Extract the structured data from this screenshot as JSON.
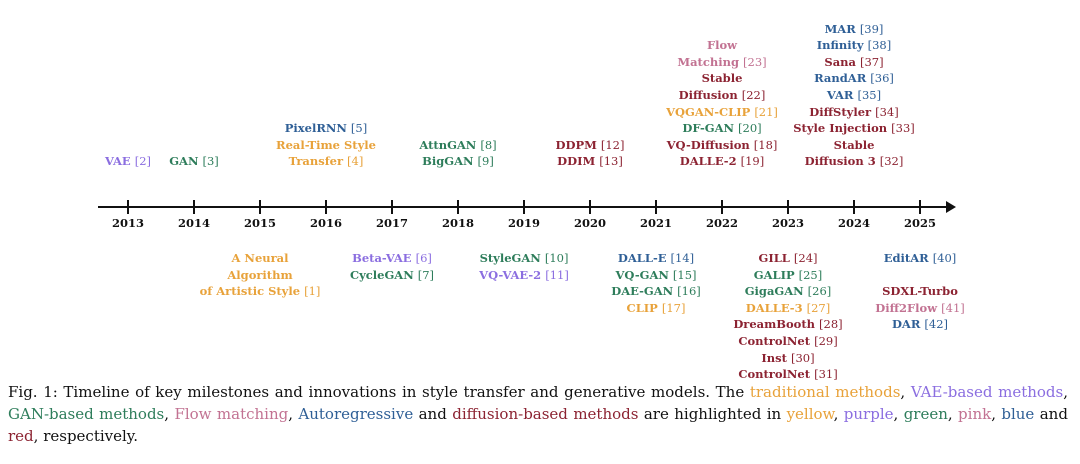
{
  "colors": {
    "yellow": "#e8a23a",
    "purple": "#8b6ee0",
    "green": "#2e7d5b",
    "pink": "#c27292",
    "blue": "#2f5f96",
    "red": "#8c2332"
  },
  "years": [
    "2013",
    "2014",
    "2015",
    "2016",
    "2017",
    "2018",
    "2019",
    "2020",
    "2021",
    "2022",
    "2023",
    "2024",
    "2025"
  ],
  "above": {
    "y2013": [
      {
        "name": "VAE",
        "ref": "[2]",
        "color": "purple"
      }
    ],
    "y2014": [
      {
        "name": "GAN",
        "ref": "[3]",
        "color": "green"
      }
    ],
    "y2016": [
      {
        "name": "PixelRNN",
        "ref": "[5]",
        "color": "blue"
      },
      {
        "name": "Real-Time Style",
        "ref": "",
        "color": "yellow"
      },
      {
        "name": "Transfer",
        "ref": "[4]",
        "color": "yellow"
      }
    ],
    "y2018": [
      {
        "name": "AttnGAN",
        "ref": "[8]",
        "color": "green"
      },
      {
        "name": "BigGAN",
        "ref": "[9]",
        "color": "green"
      }
    ],
    "y2020": [
      {
        "name": "DDPM",
        "ref": "[12]",
        "color": "red"
      },
      {
        "name": "DDIM",
        "ref": "[13]",
        "color": "red"
      }
    ],
    "y2022": [
      {
        "name": "Flow",
        "ref": "",
        "color": "pink"
      },
      {
        "name": "Matching",
        "ref": "[23]",
        "color": "pink"
      },
      {
        "name": "Stable",
        "ref": "",
        "color": "red"
      },
      {
        "name": "Diffusion",
        "ref": "[22]",
        "color": "red"
      },
      {
        "name": "VQGAN-CLIP",
        "ref": "[21]",
        "color": "yellow"
      },
      {
        "name": "DF-GAN",
        "ref": "[20]",
        "color": "green"
      },
      {
        "name": "VQ-Diffusion",
        "ref": "[18]",
        "color": "red"
      },
      {
        "name": "DALLE-2",
        "ref": "[19]",
        "color": "red"
      }
    ],
    "y2024": [
      {
        "name": "MAR",
        "ref": "[39]",
        "color": "blue"
      },
      {
        "name": "Infinity",
        "ref": "[38]",
        "color": "blue"
      },
      {
        "name": "Sana",
        "ref": "[37]",
        "color": "red"
      },
      {
        "name": "RandAR",
        "ref": "[36]",
        "color": "blue"
      },
      {
        "name": "VAR",
        "ref": "[35]",
        "color": "blue"
      },
      {
        "name": "DiffStyler",
        "ref": "[34]",
        "color": "red"
      },
      {
        "name": "Style Injection",
        "ref": "[33]",
        "color": "red"
      },
      {
        "name": "Stable",
        "ref": "",
        "color": "red"
      },
      {
        "name": "Diffusion 3",
        "ref": "[32]",
        "color": "red"
      }
    ]
  },
  "below": {
    "y2015": [
      {
        "name": "A Neural",
        "ref": "",
        "color": "yellow"
      },
      {
        "name": "Algorithm",
        "ref": "",
        "color": "yellow"
      },
      {
        "name": "of Artistic Style",
        "ref": "[1]",
        "color": "yellow"
      }
    ],
    "y2017": [
      {
        "name": "Beta-VAE",
        "ref": "[6]",
        "color": "purple"
      },
      {
        "name": "CycleGAN",
        "ref": "[7]",
        "color": "green"
      }
    ],
    "y2019": [
      {
        "name": "StyleGAN",
        "ref": "[10]",
        "color": "green"
      },
      {
        "name": "VQ-VAE-2",
        "ref": "[11]",
        "color": "purple"
      }
    ],
    "y2021": [
      {
        "name": "DALL-E",
        "ref": "[14]",
        "color": "blue"
      },
      {
        "name": "VQ-GAN",
        "ref": "[15]",
        "color": "green"
      },
      {
        "name": "DAE-GAN",
        "ref": "[16]",
        "color": "green"
      },
      {
        "name": "CLIP",
        "ref": "[17]",
        "color": "yellow"
      }
    ],
    "y2023": [
      {
        "name": "GILL",
        "ref": "[24]",
        "color": "red"
      },
      {
        "name": "GALIP",
        "ref": "[25]",
        "color": "green"
      },
      {
        "name": "GigaGAN",
        "ref": "[26]",
        "color": "green"
      },
      {
        "name": "DALLE-3",
        "ref": "[27]",
        "color": "yellow"
      },
      {
        "name": "DreamBooth",
        "ref": "[28]",
        "color": "red"
      },
      {
        "name": "ControlNet",
        "ref": "[29]",
        "color": "red"
      },
      {
        "name": "Inst",
        "ref": "[30]",
        "color": "red"
      },
      {
        "name": "ControlNet",
        "ref": "[31]",
        "color": "red"
      }
    ],
    "y2025": [
      {
        "name": "EditAR",
        "ref": "[40]",
        "color": "blue"
      },
      {
        "name": "",
        "ref": "",
        "color": "blue"
      },
      {
        "name": "SDXL-Turbo",
        "ref": "",
        "color": "red"
      },
      {
        "name": "Diff2Flow",
        "ref": "[41]",
        "color": "pink"
      },
      {
        "name": "DAR",
        "ref": "[42]",
        "color": "blue"
      }
    ]
  },
  "caption": {
    "prefix": "Fig. 1: Timeline of key milestones and innovations in style transfer and generative models. The ",
    "traditional": "traditional methods",
    "sep1": ", ",
    "vae": "VAE-based methods",
    "sep2": ", ",
    "gan": "GAN-based methods",
    "sep3": ", ",
    "flow": "Flow matching",
    "sep4": ", ",
    "ar": "Autoregressive",
    "sep5": " and ",
    "diffusion": "diffusion-based methods",
    "mid": " are highlighted in ",
    "yellow": "yellow",
    "sep6": ", ",
    "purple": "purple",
    "sep7": ", ",
    "green": "green",
    "sep8": ", ",
    "pink": "pink",
    "sep9": ", ",
    "blue": "blue",
    "sep10": " and ",
    "red": "red",
    "suffix": ", respectively."
  }
}
